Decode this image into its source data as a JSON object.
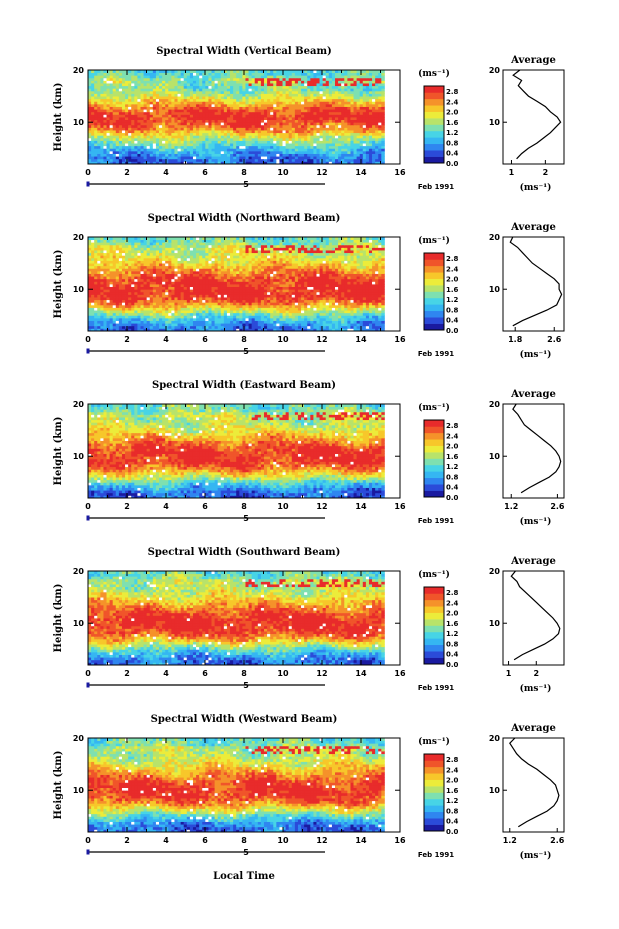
{
  "chart_data": {
    "type": "heatmap",
    "x_axis_label": "Local Time",
    "y_axis_label": "Height (km)",
    "date_label": "Feb 1991",
    "date_marker_label": "5",
    "x_ticks": [
      0,
      2,
      4,
      6,
      8,
      10,
      12,
      14,
      16
    ],
    "x_range": [
      0,
      16
    ],
    "data_end_time": 15.2,
    "y_ticks": [
      10,
      20
    ],
    "y_range": [
      2,
      20
    ],
    "colorbar": {
      "unit_label": "(ms⁻¹)",
      "ticks": [
        "0.0",
        "0.4",
        "0.8",
        "1.2",
        "1.6",
        "2.0",
        "2.4",
        "2.8"
      ],
      "range": [
        0,
        3.0
      ],
      "colors": [
        "#1a1aa0",
        "#2b4bd9",
        "#2f86f0",
        "#35b6f2",
        "#47d4e6",
        "#7ee0b0",
        "#b8e36a",
        "#ecec3a",
        "#f7c72a",
        "#f5922a",
        "#f0552a",
        "#e82b2b"
      ]
    },
    "average_title": "Average",
    "average_unit_label": "(ms⁻¹)",
    "panels": [
      {
        "title": "Spectral Width (Vertical Beam)",
        "avg_xticks": [
          "1",
          "2"
        ],
        "avg_xtick_values": [
          1,
          2
        ],
        "avg_xrange": [
          0.75,
          2.55
        ],
        "avg_heights": [
          3,
          4,
          5,
          6,
          7,
          8,
          9,
          10,
          11,
          12,
          13,
          14,
          15,
          16,
          17,
          18,
          19,
          20
        ],
        "avg_values": [
          1.15,
          1.3,
          1.5,
          1.75,
          1.95,
          2.15,
          2.3,
          2.45,
          2.35,
          2.15,
          2.0,
          1.75,
          1.5,
          1.35,
          1.2,
          1.3,
          1.05,
          1.25
        ],
        "field_profile": [
          0.5,
          0.75,
          1.0,
          1.35,
          1.7,
          2.1,
          2.5,
          2.75,
          2.85,
          2.75,
          2.45,
          2.1,
          1.75,
          1.45,
          1.35,
          1.55,
          1.3,
          1.2
        ]
      },
      {
        "title": "Spectral Width (Northward Beam)",
        "avg_xticks": [
          "1.8",
          "2.6"
        ],
        "avg_xtick_values": [
          1.8,
          2.6
        ],
        "avg_xrange": [
          1.55,
          2.8
        ],
        "avg_heights": [
          3,
          4,
          5,
          6,
          7,
          8,
          9,
          10,
          11,
          12,
          13,
          14,
          15,
          16,
          17,
          18,
          19,
          20
        ],
        "avg_values": [
          1.75,
          1.95,
          2.2,
          2.45,
          2.65,
          2.7,
          2.75,
          2.7,
          2.7,
          2.6,
          2.45,
          2.3,
          2.15,
          2.05,
          1.95,
          1.85,
          1.7,
          1.75
        ],
        "field_profile": [
          0.6,
          0.9,
          1.3,
          1.8,
          2.3,
          2.7,
          2.85,
          2.9,
          2.85,
          2.75,
          2.55,
          2.3,
          2.05,
          1.85,
          1.7,
          1.75,
          1.4,
          1.3
        ]
      },
      {
        "title": "Spectral Width (Eastward Beam)",
        "avg_xticks": [
          "1.2",
          "2.6"
        ],
        "avg_xtick_values": [
          1.2,
          2.6
        ],
        "avg_xrange": [
          0.95,
          2.8
        ],
        "avg_heights": [
          3,
          4,
          5,
          6,
          7,
          8,
          9,
          10,
          11,
          12,
          13,
          14,
          15,
          16,
          17,
          18,
          19,
          20
        ],
        "avg_values": [
          1.5,
          1.75,
          2.05,
          2.35,
          2.55,
          2.65,
          2.7,
          2.65,
          2.55,
          2.4,
          2.2,
          2.0,
          1.8,
          1.6,
          1.5,
          1.4,
          1.25,
          1.35
        ],
        "field_profile": [
          0.5,
          0.8,
          1.2,
          1.7,
          2.2,
          2.6,
          2.8,
          2.85,
          2.8,
          2.65,
          2.4,
          2.15,
          1.9,
          1.7,
          1.6,
          1.7,
          1.35,
          1.25
        ]
      },
      {
        "title": "Spectral Width (Southward Beam)",
        "avg_xticks": [
          "1",
          "2"
        ],
        "avg_xtick_values": [
          1,
          2
        ],
        "avg_xrange": [
          0.8,
          3.0
        ],
        "avg_heights": [
          3,
          4,
          5,
          6,
          7,
          8,
          9,
          10,
          11,
          12,
          13,
          14,
          15,
          16,
          17,
          18,
          19,
          20
        ],
        "avg_values": [
          1.2,
          1.5,
          1.9,
          2.3,
          2.6,
          2.8,
          2.85,
          2.75,
          2.6,
          2.4,
          2.2,
          2.0,
          1.8,
          1.6,
          1.4,
          1.3,
          1.1,
          1.25
        ],
        "field_profile": [
          0.55,
          0.85,
          1.25,
          1.75,
          2.25,
          2.65,
          2.85,
          2.9,
          2.85,
          2.7,
          2.45,
          2.2,
          1.95,
          1.75,
          1.6,
          1.7,
          1.35,
          1.25
        ]
      },
      {
        "title": "Spectral Width (Westward Beam)",
        "avg_xticks": [
          "1.2",
          "2.6"
        ],
        "avg_xtick_values": [
          1.2,
          2.6
        ],
        "avg_xrange": [
          1.0,
          2.8
        ],
        "avg_heights": [
          3,
          4,
          5,
          6,
          7,
          8,
          9,
          10,
          11,
          12,
          13,
          14,
          15,
          16,
          17,
          18,
          19,
          20
        ],
        "avg_values": [
          1.45,
          1.7,
          2.0,
          2.3,
          2.5,
          2.6,
          2.65,
          2.6,
          2.55,
          2.4,
          2.2,
          2.0,
          1.75,
          1.55,
          1.4,
          1.3,
          1.2,
          1.35
        ],
        "field_profile": [
          0.5,
          0.8,
          1.2,
          1.7,
          2.2,
          2.6,
          2.8,
          2.85,
          2.8,
          2.65,
          2.4,
          2.15,
          1.9,
          1.7,
          1.55,
          1.7,
          1.3,
          1.25
        ]
      }
    ]
  }
}
